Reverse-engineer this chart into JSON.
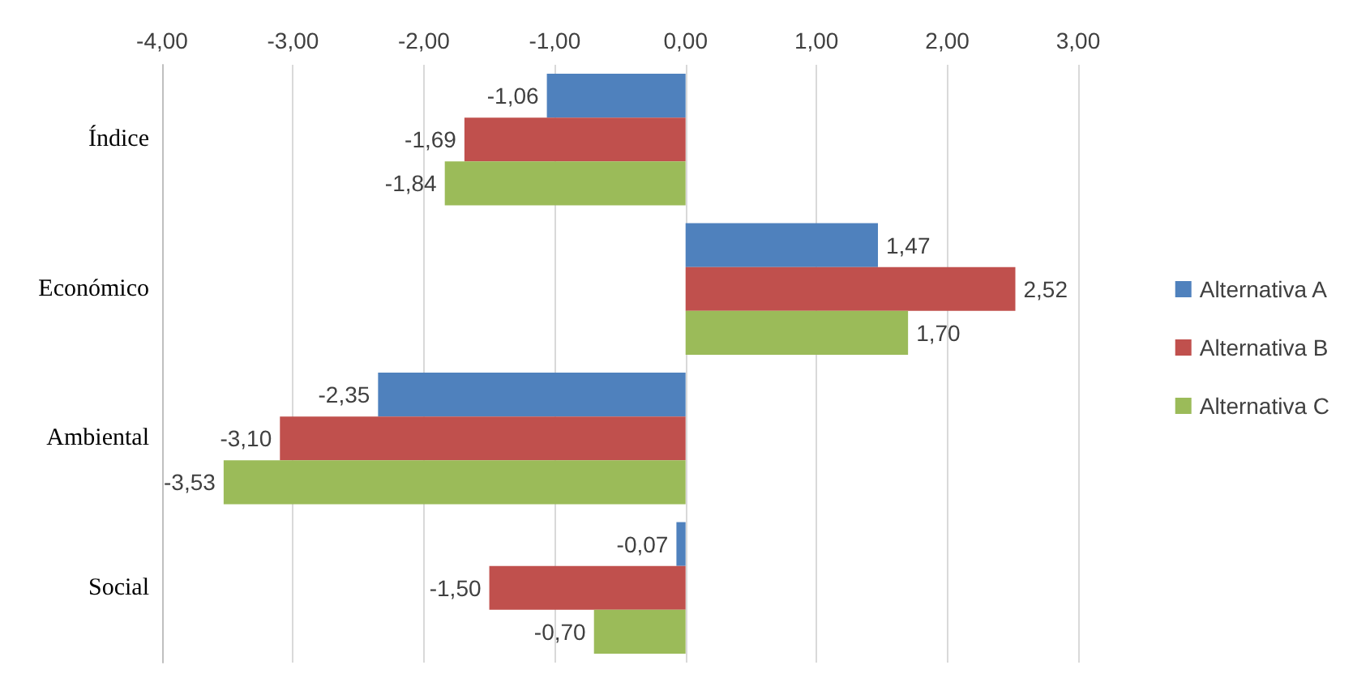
{
  "chart_data": {
    "type": "bar",
    "orientation": "horizontal",
    "categories": [
      "Índice",
      "Económico",
      "Ambiental",
      "Social"
    ],
    "series": [
      {
        "name": "Alternativa A",
        "color": "#4f81bd",
        "values": [
          -1.06,
          1.47,
          -2.35,
          -0.07
        ],
        "value_labels": [
          "-1,06",
          "1,47",
          "-2,35",
          "-0,07"
        ]
      },
      {
        "name": "Alternativa B",
        "color": "#c0504d",
        "values": [
          -1.69,
          2.52,
          -3.1,
          -1.5
        ],
        "value_labels": [
          "-1,69",
          "2,52",
          "-3,10",
          "-1,50"
        ]
      },
      {
        "name": "Alternativa C",
        "color": "#9bbb59",
        "values": [
          -1.84,
          1.7,
          -3.53,
          -0.7
        ],
        "value_labels": [
          "-1,84",
          "1,70",
          "-3,53",
          "-0,70"
        ]
      }
    ],
    "xlim": [
      -4,
      3
    ],
    "xticks": [
      {
        "value": -4,
        "label": "-4,00"
      },
      {
        "value": -3,
        "label": "-3,00"
      },
      {
        "value": -2,
        "label": "-2,00"
      },
      {
        "value": -1,
        "label": "-1,00"
      },
      {
        "value": 0,
        "label": "0,00"
      },
      {
        "value": 1,
        "label": "1,00"
      },
      {
        "value": 2,
        "label": "2,00"
      },
      {
        "value": 3,
        "label": "3,00"
      }
    ],
    "grid": "x",
    "legend": "right"
  }
}
